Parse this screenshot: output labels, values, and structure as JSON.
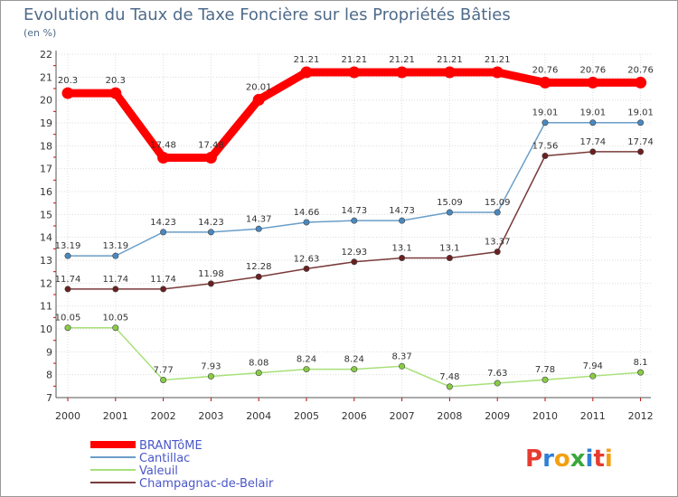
{
  "chart_data": {
    "type": "line",
    "title": "Evolution du Taux de Taxe Foncière sur les Propriétés Bâties",
    "subtitle": "(en %)",
    "xlabel": "",
    "ylabel": "",
    "categories": [
      "2000",
      "2001",
      "2002",
      "2003",
      "2004",
      "2005",
      "2006",
      "2007",
      "2008",
      "2009",
      "2010",
      "2011",
      "2012"
    ],
    "ylim": [
      7,
      22
    ],
    "yticks": [
      7,
      8,
      9,
      10,
      11,
      12,
      13,
      14,
      15,
      16,
      17,
      18,
      19,
      20,
      21,
      22
    ],
    "grid": true,
    "legend_position": "bottom-left",
    "series": [
      {
        "name": "BRANTôME",
        "color": "#ff0000",
        "values": [
          20.3,
          20.3,
          17.48,
          17.48,
          20.01,
          21.21,
          21.21,
          21.21,
          21.21,
          21.21,
          20.76,
          20.76,
          20.76
        ],
        "labels": [
          "20.3",
          "20.3",
          "17.48",
          "17.48",
          "20.01",
          "21.21",
          "21.21",
          "21.21",
          "21.21",
          "21.21",
          "20.76",
          "20.76",
          "20.76"
        ]
      },
      {
        "name": "Cantillac",
        "color": "#6a9ec8",
        "marker": "#4a88c0",
        "values": [
          13.19,
          13.19,
          14.23,
          14.23,
          14.37,
          14.66,
          14.73,
          14.73,
          15.09,
          15.09,
          19.01,
          19.01,
          19.01
        ],
        "labels": [
          "13.19",
          "13.19",
          "14.23",
          "14.23",
          "14.37",
          "14.66",
          "14.73",
          "14.73",
          "15.09",
          "15.09",
          "19.01",
          "19.01",
          "19.01"
        ]
      },
      {
        "name": "Valeuil",
        "color": "#a8e07a",
        "marker": "#88cc44",
        "values": [
          10.05,
          10.05,
          7.77,
          7.93,
          8.08,
          8.24,
          8.24,
          8.37,
          7.48,
          7.63,
          7.78,
          7.94,
          8.1
        ],
        "labels": [
          "10.05",
          "10.05",
          "7.77",
          "7.93",
          "8.08",
          "8.24",
          "8.24",
          "8.37",
          "7.48",
          "7.63",
          "7.78",
          "7.94",
          "8.1"
        ]
      },
      {
        "name": "Champagnac-de-Belair",
        "color": "#7a3a3a",
        "marker": "#6b2020",
        "values": [
          11.74,
          11.74,
          11.74,
          11.98,
          12.28,
          12.63,
          12.93,
          13.1,
          13.1,
          13.37,
          17.56,
          17.74,
          17.74
        ],
        "labels": [
          "11.74",
          "11.74",
          "11.74",
          "11.98",
          "12.28",
          "12.63",
          "12.93",
          "13.1",
          "13.1",
          "13.37",
          "17.56",
          "17.74",
          "17.74"
        ]
      }
    ]
  },
  "logo": {
    "text": "Proxiti"
  }
}
